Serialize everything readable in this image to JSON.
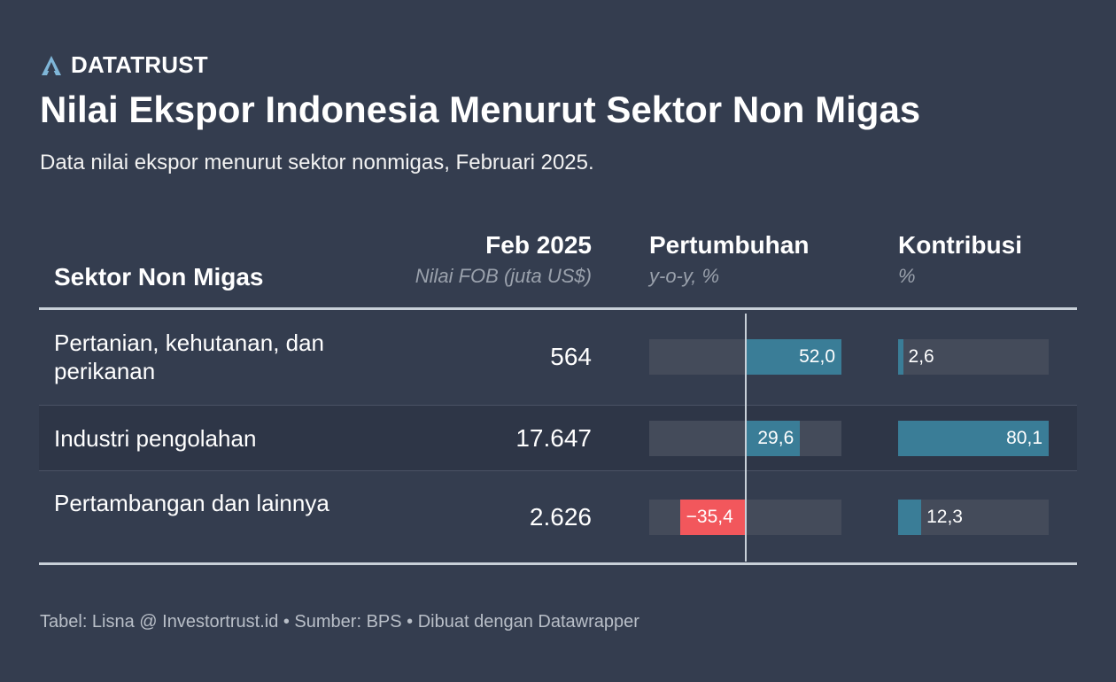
{
  "brand": {
    "name": "DATATRUST",
    "icon": "datatrust-logo-icon"
  },
  "title": "Nilai Ekspor Indonesia Menurut Sektor Non Migas",
  "subtitle": "Data nilai ekspor menurut sektor nonmigas, Februari 2025.",
  "headers": {
    "sector": "Sektor Non Migas",
    "value_main": "Feb 2025",
    "value_sub": "Nilai FOB (juta US$)",
    "growth_main": "Pertumbuhan",
    "growth_sub": "y-o-y, %",
    "contrib_main": "Kontribusi",
    "contrib_sub": "%"
  },
  "footer": "Tabel: Lisna @ Investortrust.id • Sumber: BPS • Dibuat dengan Datawrapper",
  "colors": {
    "background": "#343d4f",
    "positive_bar": "#3a7d97",
    "negative_bar": "#f2575c",
    "track": "#444b5a",
    "rule": "#c8d0d8"
  },
  "chart_data": {
    "type": "table",
    "columns": [
      "Sektor Non Migas",
      "Feb 2025",
      "Pertumbuhan",
      "Kontribusi"
    ],
    "growth_range": [
      -52,
      52
    ],
    "contribution_range": [
      0,
      80.1
    ],
    "rows": [
      {
        "sector": "Pertanian, kehutanan, dan perikanan",
        "value": "564",
        "growth": 52.0,
        "growth_label": "52,0",
        "contribution": 2.6,
        "contribution_label": "2,6"
      },
      {
        "sector": "Industri pengolahan",
        "value": "17.647",
        "growth": 29.6,
        "growth_label": "29,6",
        "contribution": 80.1,
        "contribution_label": "80,1"
      },
      {
        "sector": "Pertambangan dan lainnya",
        "value": "2.626",
        "growth": -35.4,
        "growth_label": "−35,4",
        "contribution": 12.3,
        "contribution_label": "12,3"
      }
    ]
  }
}
